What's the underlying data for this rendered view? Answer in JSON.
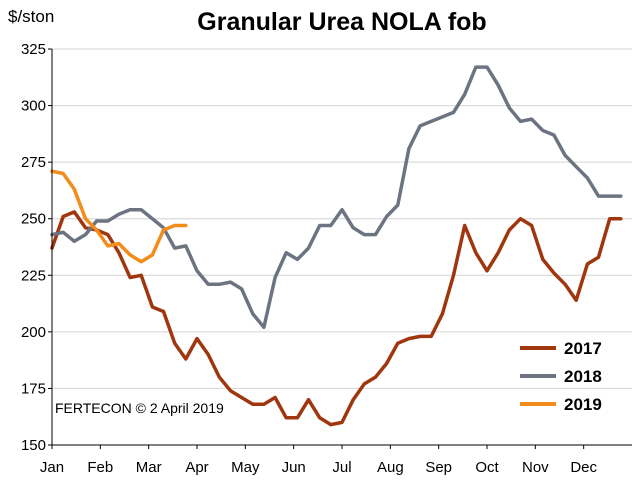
{
  "chart_data": {
    "type": "line",
    "title": "Granular Urea NOLA fob",
    "ylabel": "$/ston",
    "annotation": "FERTECON © 2 April 2019",
    "ylim": [
      150,
      325
    ],
    "yticks": [
      150,
      175,
      200,
      225,
      250,
      275,
      300,
      325
    ],
    "xlim": [
      0,
      52
    ],
    "month_labels": [
      "Jan",
      "Feb",
      "Mar",
      "Apr",
      "May",
      "Jun",
      "Jul",
      "Aug",
      "Sep",
      "Oct",
      "Nov",
      "Dec"
    ],
    "legend_position": "bottom-right",
    "grid": "horizontal",
    "series": [
      {
        "name": "2017",
        "color": "#A0360E",
        "x": [
          0,
          1,
          2,
          3,
          4,
          5,
          6,
          7,
          8,
          9,
          10,
          11,
          12,
          13,
          14,
          15,
          16,
          17,
          18,
          19,
          20,
          21,
          22,
          23,
          24,
          25,
          26,
          27,
          28,
          29,
          30,
          31,
          32,
          33,
          34,
          35,
          36,
          37,
          38,
          39,
          40,
          41,
          42,
          43,
          44,
          45,
          46,
          47,
          48,
          49,
          50,
          51
        ],
        "values": [
          237,
          251,
          253,
          246,
          245,
          243,
          235,
          224,
          225,
          211,
          209,
          195,
          188,
          197,
          190,
          180,
          174,
          171,
          168,
          168,
          171,
          162,
          162,
          170,
          162,
          159,
          160,
          170,
          177,
          180,
          186,
          195,
          197,
          198,
          198,
          208,
          225,
          247,
          235,
          227,
          235,
          245,
          250,
          247,
          232,
          226,
          221,
          214,
          230,
          233,
          250,
          250
        ]
      },
      {
        "name": "2018",
        "color": "#6C7482",
        "x": [
          0,
          1,
          2,
          3,
          4,
          5,
          6,
          7,
          8,
          9,
          10,
          11,
          12,
          13,
          14,
          15,
          16,
          17,
          18,
          19,
          20,
          21,
          22,
          23,
          24,
          25,
          26,
          27,
          28,
          29,
          30,
          31,
          32,
          33,
          34,
          35,
          36,
          37,
          38,
          39,
          40,
          41,
          42,
          43,
          44,
          45,
          46,
          47,
          48,
          49,
          50,
          51
        ],
        "values": [
          243,
          244,
          240,
          243,
          249,
          249,
          252,
          254,
          254,
          250,
          246,
          237,
          238,
          227,
          221,
          221,
          222,
          219,
          208,
          202,
          224,
          235,
          232,
          237,
          247,
          247,
          254,
          246,
          243,
          243,
          251,
          256,
          281,
          291,
          293,
          295,
          297,
          305,
          317,
          317,
          309,
          299,
          293,
          294,
          289,
          287,
          278,
          273,
          268,
          260,
          260,
          260
        ]
      },
      {
        "name": "2019",
        "color": "#F28C1A",
        "x": [
          0,
          1,
          2,
          3,
          4,
          5,
          6,
          7,
          8,
          9,
          10,
          11,
          12
        ],
        "values": [
          271,
          270,
          263,
          250,
          245,
          238,
          239,
          234,
          231,
          234,
          245,
          247,
          247
        ]
      }
    ]
  }
}
